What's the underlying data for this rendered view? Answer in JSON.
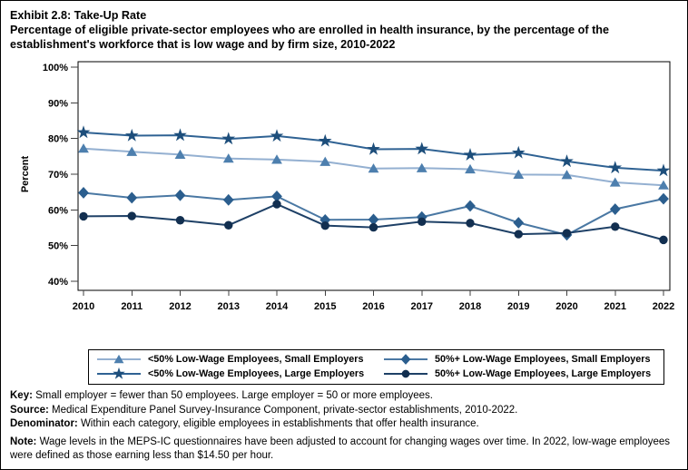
{
  "page": {
    "title": "Exhibit 2.8: Take-Up Rate",
    "subtitle": "Percentage of eligible private-sector employees who are enrolled in health insurance, by the percentage of the establishment's workforce that is low wage and by firm size, 2010-2022"
  },
  "chart_data": {
    "type": "line",
    "title": "Exhibit 2.8: Take-Up Rate",
    "xlabel": "",
    "ylabel": "Percent",
    "ylim": [
      40,
      100
    ],
    "grid": false,
    "legend_position": "bottom-box",
    "x_categories": [
      "2010",
      "2011",
      "2012",
      "2013",
      "2014",
      "2015",
      "2016",
      "2017",
      "2018",
      "2019",
      "2020",
      "2021",
      "2022"
    ],
    "yticks": [
      {
        "value": 100,
        "label": "100%"
      },
      {
        "value": 90,
        "label": "90%"
      },
      {
        "value": 80,
        "label": "80%"
      },
      {
        "value": 70,
        "label": "70%"
      },
      {
        "value": 60,
        "label": "60%"
      },
      {
        "value": 50,
        "label": "50%"
      },
      {
        "value": 40,
        "label": "40%"
      }
    ],
    "series": [
      {
        "name": "<50% Low-Wage Employees, Small Employers",
        "marker": "triangle",
        "marker_color": "#4d7fae",
        "line_color": "#94b0d1",
        "values": [
          77.2,
          76.3,
          75.5,
          74.4,
          74.1,
          73.5,
          71.6,
          71.7,
          71.4,
          69.9,
          69.8,
          67.7,
          66.9
        ]
      },
      {
        "name": "<50% Low-Wage Employees, Large Employers",
        "marker": "star",
        "marker_color": "#1d4e7b",
        "line_color": "#2f6293",
        "values": [
          81.7,
          80.8,
          80.9,
          79.9,
          80.7,
          79.3,
          77.0,
          77.1,
          75.4,
          76.0,
          73.6,
          71.8,
          71.0
        ]
      },
      {
        "name": "50%+ Low-Wage Employees, Small Employers",
        "marker": "diamond",
        "marker_color": "#2b5e8e",
        "line_color": "#4a78a3",
        "values": [
          64.8,
          63.4,
          64.1,
          62.8,
          63.8,
          57.2,
          57.3,
          58.0,
          61.1,
          56.4,
          53.0,
          60.2,
          63.1
        ]
      },
      {
        "name": "50%+ Low-Wage Employees, Large Employers",
        "marker": "circle",
        "marker_color": "#122f50",
        "line_color": "#1e4066",
        "values": [
          58.2,
          58.3,
          57.1,
          55.7,
          61.6,
          55.6,
          55.1,
          56.7,
          56.3,
          53.2,
          53.5,
          55.3,
          51.6
        ]
      }
    ],
    "legend_order": [
      0,
      2,
      1,
      3
    ]
  },
  "footnotes": [
    {
      "label": "Key:",
      "text": "Small employer = fewer than 50 employees. Large employer = 50 or more employees."
    },
    {
      "label": "Source:",
      "text": "Medical Expenditure Panel Survey-Insurance Component, private-sector establishments, 2010-2022."
    },
    {
      "label": "Denominator:",
      "text": "Within each category, eligible employees in establishments that offer health insurance."
    },
    {
      "label": "Note:",
      "text": "Wage levels in the MEPS-IC questionnaires have been adjusted to account for changing wages over time. In 2022, low-wage employees were defined as those earning less than $14.50 per hour."
    }
  ]
}
